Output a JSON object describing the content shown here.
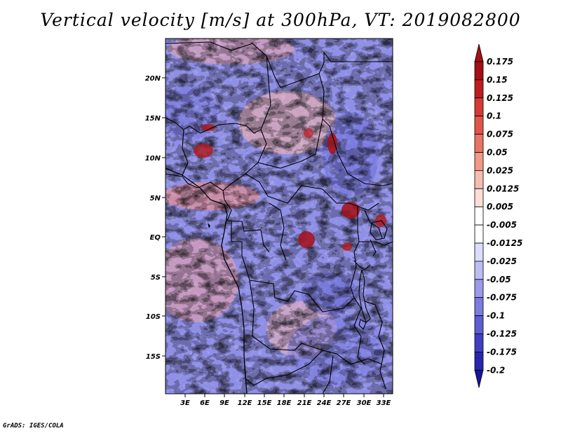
{
  "title": "Vertical velocity [m/s] at 300hPa, VT: 2019082800",
  "credit": "GrADS: IGES/COLA",
  "lat_labels": [
    "20N",
    "15N",
    "10N",
    "5N",
    "EQ",
    "5S",
    "10S",
    "15S"
  ],
  "lon_labels": [
    "3E",
    "6E",
    "9E",
    "12E",
    "15E",
    "18E",
    "21E",
    "24E",
    "27E",
    "30E",
    "33E"
  ],
  "colorbar": {
    "labels": [
      "0.175",
      "0.15",
      "0.125",
      "0.1",
      "0.075",
      "0.05",
      "0.025",
      "0.0125",
      "0.005",
      "-0.005",
      "-0.0125",
      "-0.025",
      "-0.05",
      "-0.075",
      "-0.1",
      "-0.125",
      "-0.175",
      "-0.2"
    ],
    "colors": [
      "#a50f15",
      "#c01c20",
      "#d63a33",
      "#e05548",
      "#e87464",
      "#f09a88",
      "#f6bdae",
      "#fbded6",
      "#ffffff",
      "#ffffff",
      "#dcdcfb",
      "#bdbdf5",
      "#9a9aec",
      "#7b7be0",
      "#5d5dd4",
      "#3f3fc4",
      "#2626b0",
      "#15159a"
    ]
  }
}
